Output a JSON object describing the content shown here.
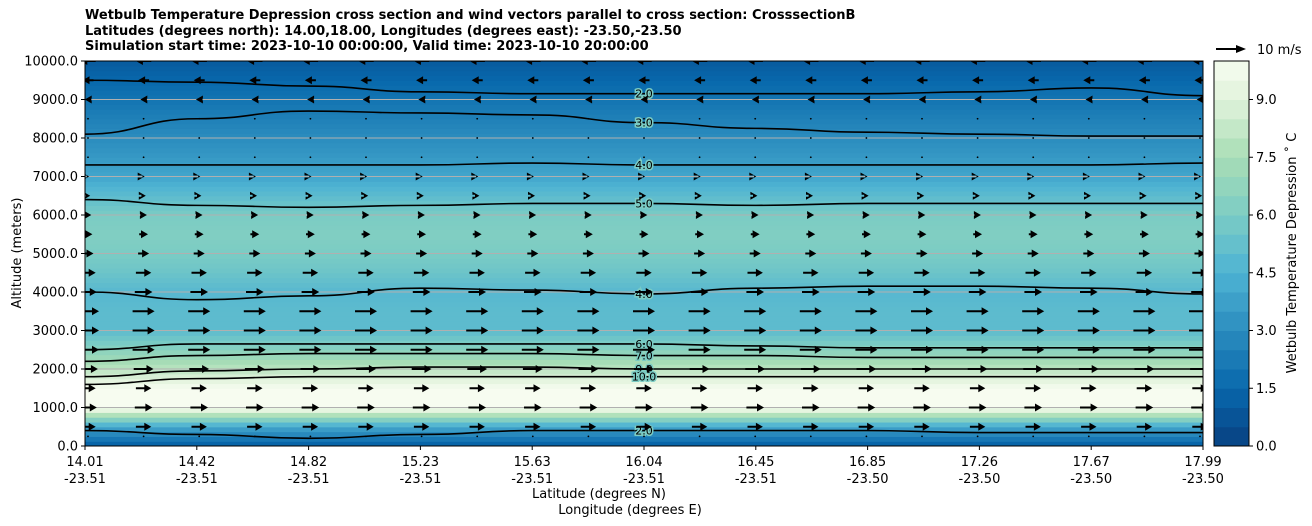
{
  "title_lines": [
    "Wetbulb Temperature Depression cross section and wind vectors parallel to cross section: CrosssectionB",
    "Latitudes (degrees north): 14.00,18.00, Longitudes (degrees east): -23.50,-23.50",
    "Simulation start time: 2023-10-10 00:00:00, Valid time: 2023-10-10 20:00:00"
  ],
  "chart_data": {
    "type": "heatmap",
    "ylabel": "Altitude (meters)",
    "xlabel_1": "Latitude (degrees N)",
    "xlabel_2": "Longitude (degrees E)",
    "ylim": [
      0,
      10000
    ],
    "y_ticks": [
      "0.0",
      "1000.0",
      "2000.0",
      "3000.0",
      "4000.0",
      "5000.0",
      "6000.0",
      "7000.0",
      "8000.0",
      "9000.0",
      "10000.0"
    ],
    "x_ticks": [
      {
        "lat": "14.01",
        "lon": "-23.51"
      },
      {
        "lat": "14.42",
        "lon": "-23.51"
      },
      {
        "lat": "14.82",
        "lon": "-23.51"
      },
      {
        "lat": "15.23",
        "lon": "-23.51"
      },
      {
        "lat": "15.63",
        "lon": "-23.51"
      },
      {
        "lat": "16.04",
        "lon": "-23.51"
      },
      {
        "lat": "16.45",
        "lon": "-23.51"
      },
      {
        "lat": "16.85",
        "lon": "-23.50"
      },
      {
        "lat": "17.26",
        "lon": "-23.50"
      },
      {
        "lat": "17.67",
        "lon": "-23.50"
      },
      {
        "lat": "17.99",
        "lon": "-23.50"
      }
    ],
    "colorbar": {
      "label": "Wetbulb Temperature Depression ˚ C",
      "ticks": [
        "0.0",
        "1.5",
        "3.0",
        "4.5",
        "6.0",
        "7.5",
        "9.0"
      ],
      "range": [
        0,
        10
      ]
    },
    "quiver_key": "10 m/s",
    "depression_profile": [
      {
        "alt": 0,
        "value": 1.0
      },
      {
        "alt": 500,
        "value": 4.0
      },
      {
        "alt": 1000,
        "value": 10.0
      },
      {
        "alt": 1500,
        "value": 10.0
      },
      {
        "alt": 2000,
        "value": 8.0
      },
      {
        "alt": 2500,
        "value": 6.5
      },
      {
        "alt": 3000,
        "value": 5.0
      },
      {
        "alt": 3500,
        "value": 5.0
      },
      {
        "alt": 4000,
        "value": 4.8
      },
      {
        "alt": 4500,
        "value": 5.5
      },
      {
        "alt": 5000,
        "value": 6.0
      },
      {
        "alt": 5500,
        "value": 6.2
      },
      {
        "alt": 6000,
        "value": 6.0
      },
      {
        "alt": 6500,
        "value": 5.0
      },
      {
        "alt": 7000,
        "value": 4.0
      },
      {
        "alt": 7500,
        "value": 3.5
      },
      {
        "alt": 8000,
        "value": 3.0
      },
      {
        "alt": 8500,
        "value": 2.5
      },
      {
        "alt": 9000,
        "value": 2.0
      },
      {
        "alt": 9500,
        "value": 1.5
      },
      {
        "alt": 10000,
        "value": 1.0
      }
    ],
    "contours": [
      {
        "label": "2.0",
        "altitudes": [
          9500,
          9450,
          9350,
          9200,
          9150,
          9150,
          9150,
          9150,
          9200,
          9300,
          9100
        ]
      },
      {
        "label": "3.0",
        "altitudes": [
          8100,
          8500,
          8700,
          8650,
          8600,
          8400,
          8250,
          8150,
          8100,
          8050,
          8050
        ]
      },
      {
        "label": "4.0",
        "altitudes": [
          7300,
          7300,
          7300,
          7300,
          7350,
          7300,
          7300,
          7300,
          7300,
          7300,
          7350
        ]
      },
      {
        "label": "5.0",
        "altitudes": [
          6400,
          6250,
          6200,
          6250,
          6300,
          6300,
          6250,
          6300,
          6300,
          6300,
          6300
        ]
      },
      {
        "label": "4.0",
        "altitudes": [
          4000,
          3800,
          3900,
          4100,
          4050,
          3950,
          4100,
          4150,
          4150,
          4100,
          3950
        ]
      },
      {
        "label": "6.0",
        "altitudes": [
          2500,
          2650,
          2650,
          2650,
          2650,
          2650,
          2600,
          2550,
          2550,
          2550,
          2550
        ]
      },
      {
        "label": "7.0",
        "altitudes": [
          2200,
          2350,
          2400,
          2400,
          2400,
          2350,
          2350,
          2300,
          2300,
          2300,
          2300
        ]
      },
      {
        "label": "9.0",
        "altitudes": [
          1800,
          1950,
          2000,
          2050,
          2050,
          2000,
          2000,
          2000,
          2000,
          2000,
          2000
        ]
      },
      {
        "label": "10.0",
        "altitudes": [
          1600,
          1750,
          1800,
          1800,
          1800,
          1800,
          1800,
          1800,
          1800,
          1800,
          1800
        ]
      },
      {
        "label": "2.0",
        "altitudes": [
          400,
          300,
          200,
          300,
          400,
          400,
          400,
          400,
          350,
          350,
          350
        ]
      }
    ],
    "wind_levels": [
      {
        "alt": 250,
        "u": 0
      },
      {
        "alt": 500,
        "u": 7
      },
      {
        "alt": 1000,
        "u": 8
      },
      {
        "alt": 1500,
        "u": 7
      },
      {
        "alt": 2000,
        "u": 9
      },
      {
        "alt": 2500,
        "u": 10
      },
      {
        "alt": 3000,
        "u": 10
      },
      {
        "alt": 3500,
        "u": 10
      },
      {
        "alt": 4000,
        "u": 8
      },
      {
        "alt": 4500,
        "u": 7
      },
      {
        "alt": 5000,
        "u": 5
      },
      {
        "alt": 5500,
        "u": 4
      },
      {
        "alt": 6000,
        "u": 3
      },
      {
        "alt": 6500,
        "u": 2
      },
      {
        "alt": 7000,
        "u": 1
      },
      {
        "alt": 7500,
        "u": 0
      },
      {
        "alt": 8000,
        "u": 0
      },
      {
        "alt": 8500,
        "u": 0
      },
      {
        "alt": 9000,
        "u": -3
      },
      {
        "alt": 9500,
        "u": -5
      },
      {
        "alt": 10000,
        "u": -7
      }
    ]
  }
}
